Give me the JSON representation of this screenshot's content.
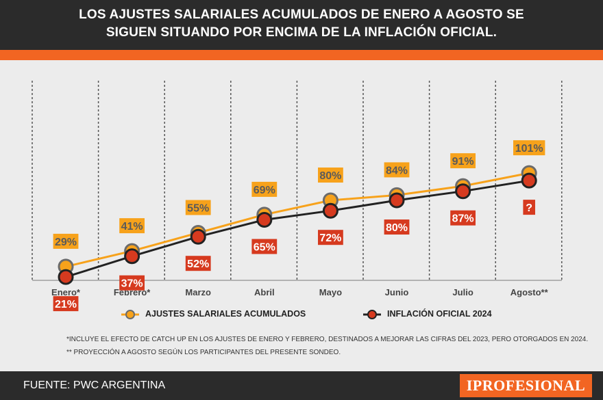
{
  "header": {
    "title_line_1": "LOS AJUSTES SALARIALES ACUMULADOS DE ENERO A AGOSTO SE",
    "title_line_2": "SIGUEN SITUANDO POR ENCIMA DE LA INFLACIÓN OFICIAL."
  },
  "chart_data": {
    "type": "line",
    "categories": [
      "Enero*",
      "Febrero*",
      "Marzo",
      "Abril",
      "Mayo",
      "Junio",
      "Julio",
      "Agosto**"
    ],
    "series": [
      {
        "name": "AJUSTES SALARIALES ACUMULADOS",
        "color": "#f7a21b",
        "values": [
          29,
          41,
          55,
          69,
          80,
          84,
          91,
          101
        ],
        "labels": [
          "29%",
          "41%",
          "55%",
          "69%",
          "80%",
          "84%",
          "91%",
          "101%"
        ]
      },
      {
        "name": "INFLACIÓN OFICIAL 2024",
        "color": "#d63a1f",
        "values": [
          21,
          37,
          52,
          65,
          72,
          80,
          87,
          null
        ],
        "labels": [
          "21%",
          "37%",
          "52%",
          "65%",
          "72%",
          "80%",
          "87%",
          "?"
        ]
      }
    ],
    "grid": "vertical dashed",
    "legend_position": "bottom"
  },
  "notes": {
    "note_1": "*INCLUYE EL EFECTO DE CATCH UP EN LOS AJUSTES DE ENERO Y FEBRERO, DESTINADOS A MEJORAR LAS CIFRAS DEL 2023, PERO OTORGADOS EN 2024.",
    "note_2": "** PROYECCIÓN A AGOSTO SEGÚN LOS PARTICIPANTES DEL PRESENTE SONDEO."
  },
  "footer": {
    "source": "FUENTE: PWC ARGENTINA",
    "brand": "IPROFESIONAL"
  },
  "colors": {
    "accent_orange": "#f26522",
    "dark": "#2b2b2b",
    "wage_series": "#f7a21b",
    "inflation_series": "#d63a1f"
  }
}
